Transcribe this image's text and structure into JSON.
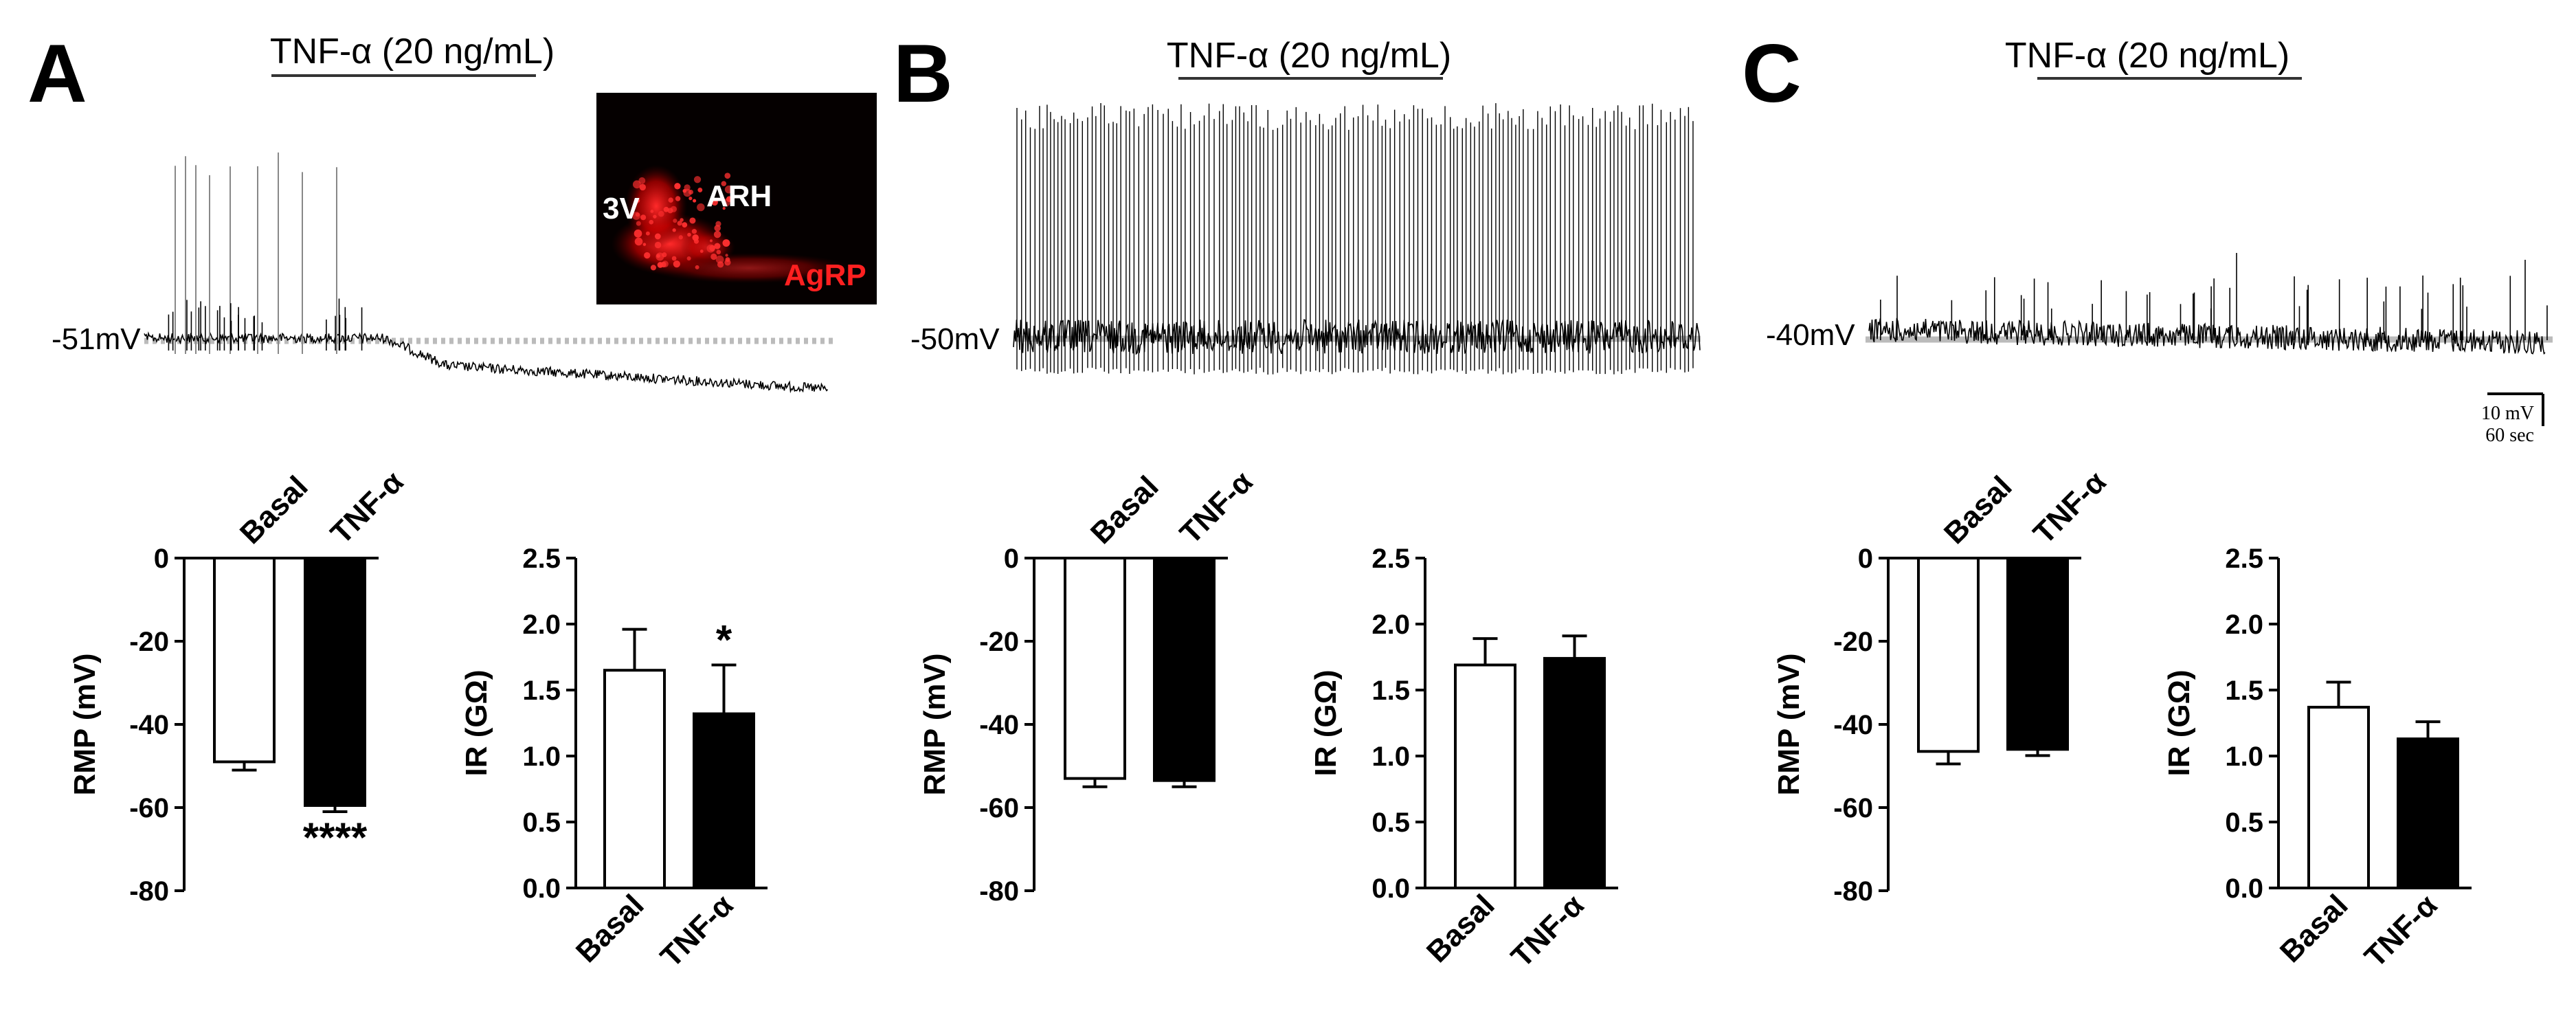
{
  "figure": {
    "panels": [
      {
        "letter": "A",
        "trace_title": "TNF-α (20 ng/mL)",
        "baseline_label": "-51mV"
      },
      {
        "letter": "B",
        "trace_title": "TNF-α (20 ng/mL)",
        "baseline_label": "-50mV"
      },
      {
        "letter": "C",
        "trace_title": "TNF-α (20 ng/mL)",
        "baseline_label": "-40mV"
      }
    ],
    "micrograph": {
      "labels": [
        "3V",
        "ARH",
        "AgRP"
      ],
      "label_colors": [
        "#ffffff",
        "#ffffff",
        "#ff2020"
      ],
      "stain_color": "#ff1a1a"
    },
    "scale_bar": {
      "voltage": "10 mV",
      "time": "60 sec"
    }
  },
  "chart_data": [
    {
      "panel": "A",
      "type": "bar",
      "categories": [
        "Basal",
        "TNF-α"
      ],
      "values": [
        -49,
        -59.5
      ],
      "errors": [
        2,
        1.5
      ],
      "fills": [
        "#ffffff",
        "#000000"
      ],
      "ylabel": "RMP (mV)",
      "ylim": [
        -80,
        0
      ],
      "yticks": [
        "0",
        "-20",
        "-40",
        "-60",
        "-80"
      ],
      "annotations": [
        "",
        "****"
      ]
    },
    {
      "panel": "A",
      "type": "bar",
      "categories": [
        "Basal",
        "TNF-α"
      ],
      "values": [
        1.65,
        1.32
      ],
      "errors": [
        0.31,
        0.37
      ],
      "fills": [
        "#ffffff",
        "#000000"
      ],
      "ylabel": "IR (GΩ)",
      "ylim": [
        0,
        2.5
      ],
      "yticks": [
        "0.0",
        "0.5",
        "1.0",
        "1.5",
        "2.0",
        "2.5"
      ],
      "annotations": [
        "",
        "*"
      ]
    },
    {
      "panel": "B",
      "type": "bar",
      "categories": [
        "Basal",
        "TNF-α"
      ],
      "values": [
        -53,
        -53.5
      ],
      "errors": [
        2,
        1.5
      ],
      "fills": [
        "#ffffff",
        "#000000"
      ],
      "ylabel": "RMP (mV)",
      "ylim": [
        -80,
        0
      ],
      "yticks": [
        "0",
        "-20",
        "-40",
        "-60",
        "-80"
      ],
      "annotations": [
        "",
        ""
      ]
    },
    {
      "panel": "B",
      "type": "bar",
      "categories": [
        "Basal",
        "TNF-α"
      ],
      "values": [
        1.69,
        1.74
      ],
      "errors": [
        0.2,
        0.17
      ],
      "fills": [
        "#ffffff",
        "#000000"
      ],
      "ylabel": "IR (GΩ)",
      "ylim": [
        0,
        2.5
      ],
      "yticks": [
        "0.0",
        "0.5",
        "1.0",
        "1.5",
        "2.0",
        "2.5"
      ],
      "annotations": [
        "",
        ""
      ]
    },
    {
      "panel": "C",
      "type": "bar",
      "categories": [
        "Basal",
        "TNF-α"
      ],
      "values": [
        -46.5,
        -46
      ],
      "errors": [
        3,
        1.5
      ],
      "fills": [
        "#ffffff",
        "#000000"
      ],
      "ylabel": "RMP (mV)",
      "ylim": [
        -80,
        0
      ],
      "yticks": [
        "0",
        "-20",
        "-40",
        "-60",
        "-80"
      ],
      "annotations": [
        "",
        ""
      ]
    },
    {
      "panel": "C",
      "type": "bar",
      "categories": [
        "Basal",
        "TNF-α"
      ],
      "values": [
        1.37,
        1.13
      ],
      "errors": [
        0.19,
        0.13
      ],
      "fills": [
        "#ffffff",
        "#000000"
      ],
      "ylabel": "IR (GΩ)",
      "ylim": [
        0,
        2.5
      ],
      "yticks": [
        "0.0",
        "0.5",
        "1.0",
        "1.5",
        "2.0",
        "2.5"
      ],
      "annotations": [
        "",
        ""
      ]
    }
  ]
}
